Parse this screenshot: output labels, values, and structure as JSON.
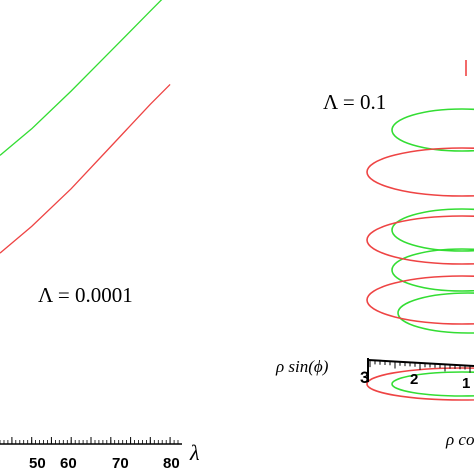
{
  "chart_data": [
    {
      "type": "line",
      "xlabel": "λ",
      "xticks": [
        "50",
        "60",
        "70",
        "80"
      ],
      "xlim": [
        37,
        83
      ],
      "ylim": [
        0,
        100
      ],
      "annotation": "Λ = 0.0001",
      "series": [
        {
          "color": "#33dd33",
          "x": [
            37,
            45,
            55,
            65,
            75,
            80
          ],
          "y": [
            65,
            71,
            79.5,
            88.5,
            97.5,
            102
          ]
        },
        {
          "color": "#ee4444",
          "x": [
            37,
            45,
            55,
            65,
            75,
            80
          ],
          "y": [
            43,
            49,
            57.5,
            67,
            76.5,
            81
          ]
        }
      ]
    },
    {
      "type": "line",
      "annotation": "Λ = 0.1",
      "axis_labels": [
        "ρ sin(ϕ)",
        "ρ co"
      ],
      "ticks": [
        "3",
        "2",
        "1"
      ],
      "series": [
        {
          "color": "#33dd33",
          "label_free": true
        },
        {
          "color": "#ee4444",
          "label_free": true
        }
      ]
    }
  ]
}
